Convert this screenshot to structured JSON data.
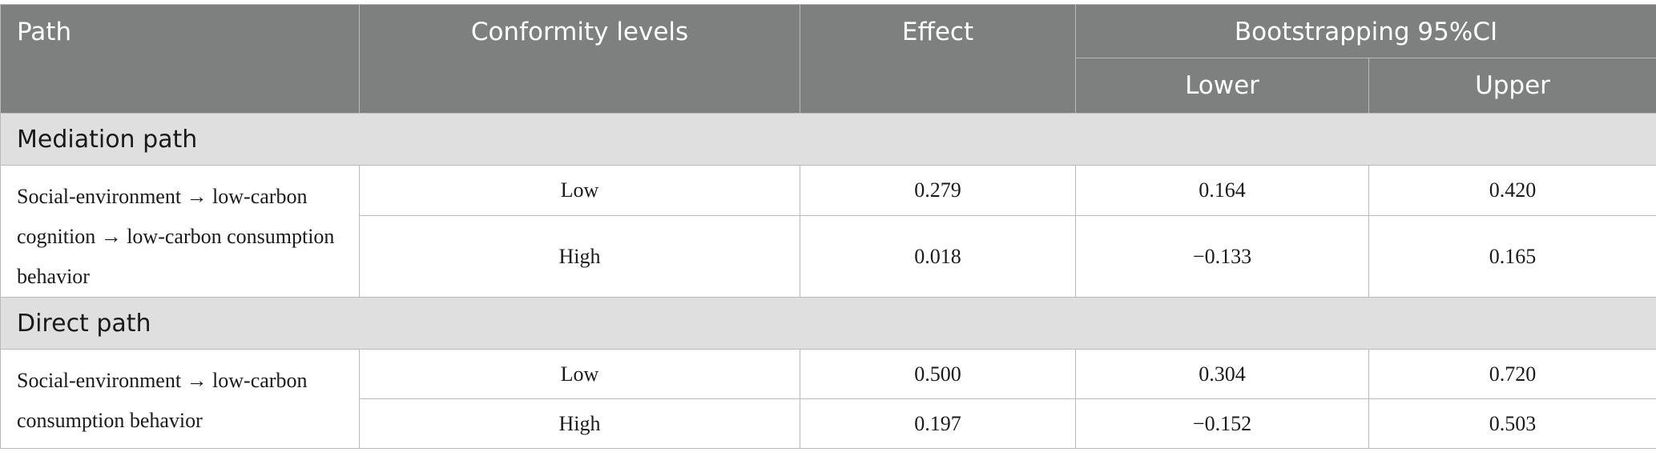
{
  "table": {
    "header": {
      "path": "Path",
      "conformity": "Conformity levels",
      "effect": "Effect",
      "ci": "Bootstrapping 95%CI",
      "lower": "Lower",
      "upper": "Upper"
    },
    "sections": [
      {
        "title": "Mediation path",
        "path": "Social-environment → low-carbon cognition → low-carbon consumption behavior",
        "rows": [
          [
            "Low",
            "0.279",
            "0.164",
            "0.420"
          ],
          [
            "High",
            "0.018",
            "−0.133",
            "0.165"
          ]
        ]
      },
      {
        "title": "Direct path",
        "path": "Social-environment → low-carbon consumption behavior",
        "rows": [
          [
            "Low",
            "0.500",
            "0.304",
            "0.720"
          ],
          [
            "High",
            "0.197",
            "−0.152",
            "0.503"
          ]
        ]
      }
    ]
  }
}
